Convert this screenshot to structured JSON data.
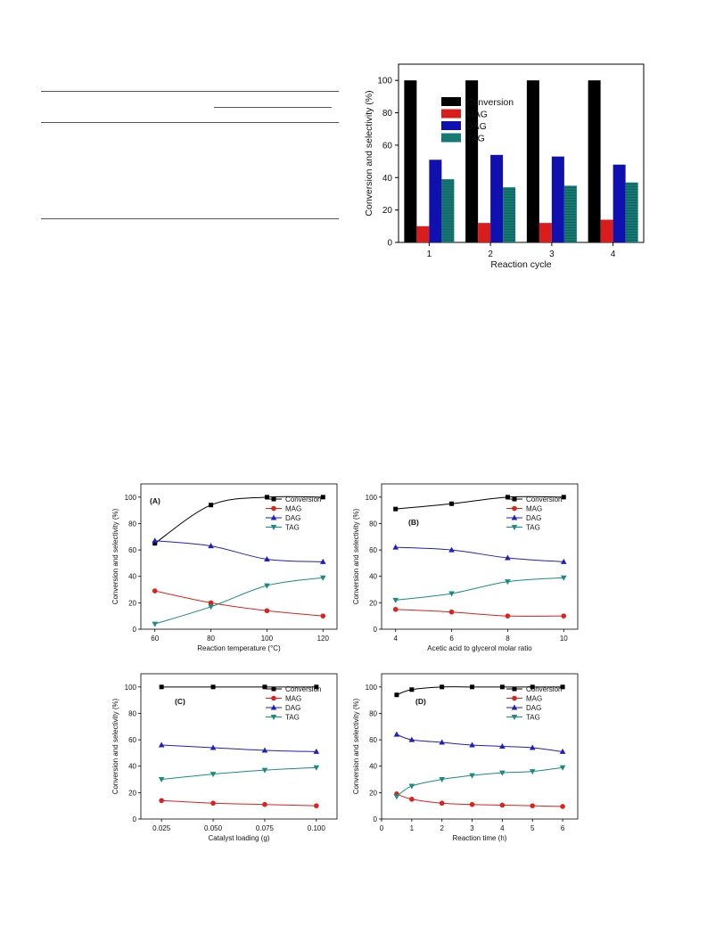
{
  "colors": {
    "conversion": "#000000",
    "mag": "#e0201b",
    "dag": "#1f1fbf",
    "tag": "#1a8a84",
    "mag_bar": "#d91c1c",
    "dag_bar": "#1010b0",
    "tag_bar": "#167a74"
  },
  "chart_data": [
    {
      "id": "cycle",
      "type": "bar",
      "categories": [
        "1",
        "2",
        "3",
        "4"
      ],
      "xlabel": "Reaction cycle",
      "ylabel": "Conversion and selectivity (%)",
      "ylim": [
        0,
        110
      ],
      "yticks": [
        0,
        20,
        40,
        60,
        80,
        100
      ],
      "legend_position": "top-center",
      "series": [
        {
          "name": "Conversion",
          "values": [
            100,
            100,
            100,
            100
          ]
        },
        {
          "name": "MAG",
          "values": [
            10,
            12,
            12,
            14
          ]
        },
        {
          "name": "DAG",
          "values": [
            51,
            54,
            53,
            48
          ]
        },
        {
          "name": "TAG",
          "values": [
            39,
            34,
            35,
            37
          ]
        }
      ]
    },
    {
      "id": "A",
      "type": "line",
      "panel_label": "(A)",
      "xlabel": "Reaction temperature (°C)",
      "ylabel": "Conversion and selectivity (%)",
      "x": [
        60,
        80,
        100,
        120
      ],
      "xlim": [
        55,
        125
      ],
      "xticks": [
        60,
        80,
        100,
        120
      ],
      "xtick_labels": [
        "60",
        "80",
        "100",
        "120"
      ],
      "ylim": [
        0,
        110
      ],
      "yticks": [
        0,
        20,
        40,
        60,
        80,
        100
      ],
      "legend_position": "top-right",
      "series": [
        {
          "name": "Conversion",
          "values": [
            65,
            94,
            100,
            100
          ]
        },
        {
          "name": "MAG",
          "values": [
            29,
            20,
            14,
            10
          ]
        },
        {
          "name": "DAG",
          "values": [
            67,
            63,
            53,
            51
          ]
        },
        {
          "name": "TAG",
          "values": [
            4,
            17,
            33,
            39
          ]
        }
      ]
    },
    {
      "id": "B",
      "type": "line",
      "panel_label": "(B)",
      "xlabel": "Acetic acid to glycerol molar ratio",
      "ylabel": "Conversion and selectivity (%)",
      "x": [
        4,
        6,
        8,
        10
      ],
      "xlim": [
        3.5,
        10.5
      ],
      "xticks": [
        4,
        6,
        8,
        10
      ],
      "xtick_labels": [
        "4",
        "6",
        "8",
        "10"
      ],
      "ylim": [
        0,
        110
      ],
      "yticks": [
        0,
        20,
        40,
        60,
        80,
        100
      ],
      "legend_position": "top-right",
      "series": [
        {
          "name": "Conversion",
          "values": [
            91,
            95,
            100,
            100
          ]
        },
        {
          "name": "MAG",
          "values": [
            15,
            13,
            10,
            10
          ]
        },
        {
          "name": "DAG",
          "values": [
            62,
            60,
            54,
            51
          ]
        },
        {
          "name": "TAG",
          "values": [
            22,
            27,
            36,
            39
          ]
        }
      ]
    },
    {
      "id": "C",
      "type": "line",
      "panel_label": "(C)",
      "xlabel": "Catalyst loading (g)",
      "ylabel": "Conversion and selectivity (%)",
      "x": [
        0.025,
        0.05,
        0.075,
        0.1
      ],
      "xlim": [
        0.015,
        0.11
      ],
      "xticks": [
        0.025,
        0.05,
        0.075,
        0.1
      ],
      "xtick_labels": [
        "0.025",
        "0.050",
        "0.075",
        "0.100"
      ],
      "ylim": [
        0,
        110
      ],
      "yticks": [
        0,
        20,
        40,
        60,
        80,
        100
      ],
      "legend_position": "top-right",
      "series": [
        {
          "name": "Conversion",
          "values": [
            100,
            100,
            100,
            100
          ]
        },
        {
          "name": "MAG",
          "values": [
            14,
            12,
            11,
            10
          ]
        },
        {
          "name": "DAG",
          "values": [
            56,
            54,
            52,
            51
          ]
        },
        {
          "name": "TAG",
          "values": [
            30,
            34,
            37,
            39
          ]
        }
      ]
    },
    {
      "id": "D",
      "type": "line",
      "panel_label": "(D)",
      "xlabel": "Reaction time (h)",
      "ylabel": "Conversion and selectivity (%)",
      "x": [
        0.5,
        1,
        2,
        3,
        4,
        5,
        6
      ],
      "xlim": [
        0,
        6.5
      ],
      "xticks": [
        0,
        1,
        2,
        3,
        4,
        5,
        6
      ],
      "xtick_labels": [
        "0",
        "1",
        "2",
        "3",
        "4",
        "5",
        "6"
      ],
      "ylim": [
        0,
        110
      ],
      "yticks": [
        0,
        20,
        40,
        60,
        80,
        100
      ],
      "legend_position": "top-right",
      "series": [
        {
          "name": "Conversion",
          "values": [
            94,
            98,
            100,
            100,
            100,
            100,
            100
          ]
        },
        {
          "name": "MAG",
          "values": [
            19,
            15,
            12,
            11,
            10.5,
            10,
            9.5
          ]
        },
        {
          "name": "DAG",
          "values": [
            64,
            60,
            58,
            56,
            55,
            54,
            51
          ]
        },
        {
          "name": "TAG",
          "values": [
            17,
            25,
            30,
            33,
            35,
            36,
            39
          ]
        }
      ]
    }
  ]
}
